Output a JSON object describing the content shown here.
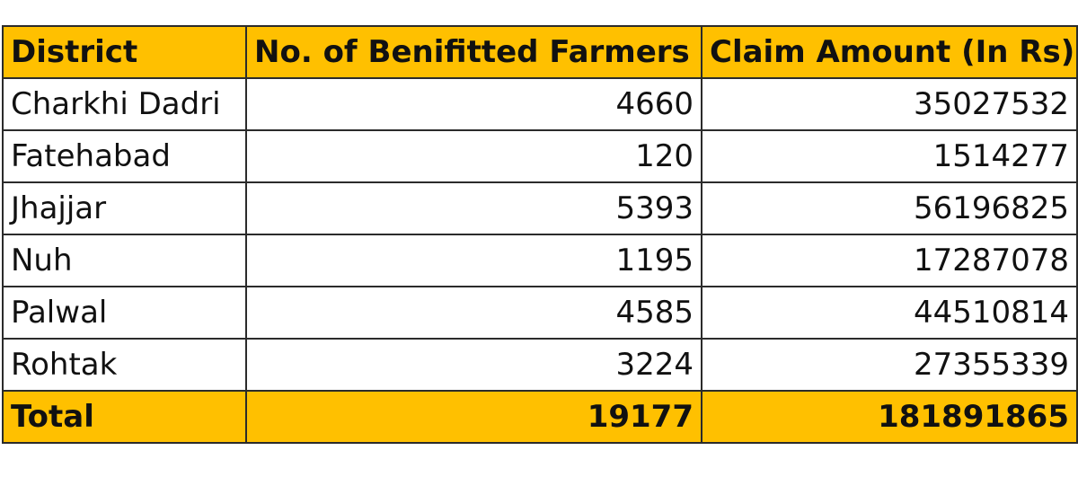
{
  "table": {
    "headers": [
      "District",
      "No. of Benifitted Farmers",
      "Claim Amount (In Rs)"
    ],
    "rows": [
      {
        "district": "Charkhi Dadri",
        "farmers": "4660",
        "claim": "35027532"
      },
      {
        "district": "Fatehabad",
        "farmers": "120",
        "claim": "1514277"
      },
      {
        "district": "Jhajjar",
        "farmers": "5393",
        "claim": "56196825"
      },
      {
        "district": "Nuh",
        "farmers": "1195",
        "claim": "17287078"
      },
      {
        "district": "Palwal",
        "farmers": "4585",
        "claim": "44510814"
      },
      {
        "district": "Rohtak",
        "farmers": "3224",
        "claim": "27355339"
      }
    ],
    "total": {
      "label": "Total",
      "farmers": "19177",
      "claim": "181891865"
    }
  },
  "colors": {
    "header_bg": "#ffc000",
    "total_bg": "#ffc000",
    "border": "#2b2b2b"
  }
}
